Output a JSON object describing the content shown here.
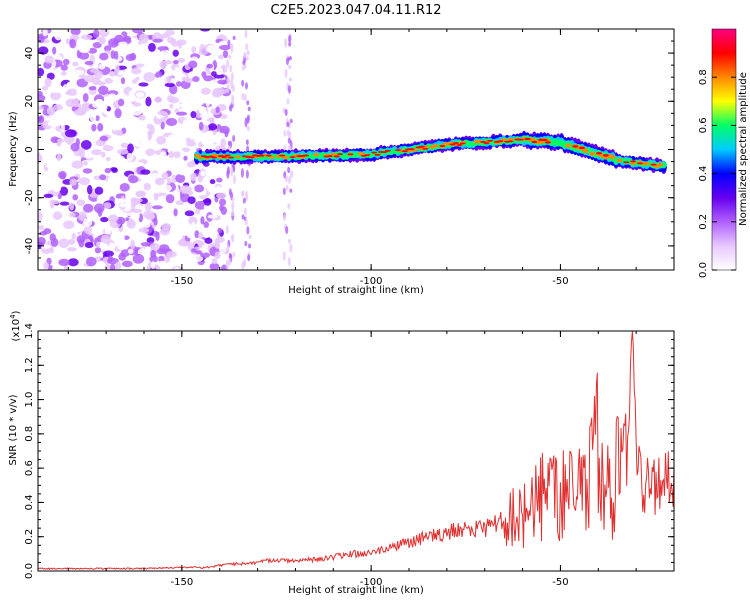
{
  "title": "C2E5.2023.047.04.11.R12",
  "chart_data": [
    {
      "type": "heatmap",
      "xlabel": "Height of straight line (km)",
      "ylabel": "Frequency (Hz)",
      "xlim": [
        -188,
        -20
      ],
      "ylim": [
        -50,
        50
      ],
      "xticks": [
        -150,
        -100,
        -50
      ],
      "yticks": [
        -40,
        -20,
        0,
        20,
        40
      ],
      "colorbar": {
        "label": "Normalized spectral amplitude",
        "range": [
          0,
          1
        ],
        "ticks": [
          "0.0",
          "0.2",
          "0.4",
          "0.6",
          "0.8"
        ],
        "colors": [
          "#ffffff",
          "#e8c8ff",
          "#b060ff",
          "#6600ee",
          "#0000ff",
          "#00ccff",
          "#00ff66",
          "#ffff00",
          "#ff8800",
          "#ff0000",
          "#ff0080"
        ]
      },
      "noise_region_x": [
        -188,
        -142
      ],
      "signal_ridge": {
        "x": [
          -146,
          -130,
          -110,
          -100,
          -90,
          -80,
          -70,
          -60,
          -50,
          -40,
          -33,
          -22
        ],
        "y": [
          -3,
          -3,
          -2.5,
          -2,
          0,
          2,
          3,
          4,
          3,
          -2,
          -5,
          -7
        ]
      }
    },
    {
      "type": "line",
      "xlabel": "Height of straight line (km)",
      "ylabel": "SNR (10 * v/v)",
      "yscale_label": "(x10",
      "yscale_exp": "4",
      "yscale_close": ")",
      "xlim": [
        -188,
        -20
      ],
      "ylim": [
        0,
        1.4
      ],
      "xticks": [
        -150,
        -100,
        -50
      ],
      "yticks": [
        "0.0",
        "0.2",
        "0.4",
        "0.6",
        "0.8",
        "1.0",
        "1.2",
        "1.4"
      ],
      "series": [
        {
          "color": "#e03030",
          "points": [
            [
              -188,
              0.01
            ],
            [
              -160,
              0.01
            ],
            [
              -145,
              0.02
            ],
            [
              -140,
              0.04
            ],
            [
              -135,
              0.05
            ],
            [
              -130,
              0.06
            ],
            [
              -126,
              0.08
            ],
            [
              -120,
              0.07
            ],
            [
              -112,
              0.09
            ],
            [
              -105,
              0.12
            ],
            [
              -100,
              0.13
            ],
            [
              -95,
              0.16
            ],
            [
              -90,
              0.2
            ],
            [
              -85,
              0.24
            ],
            [
              -80,
              0.27
            ],
            [
              -75,
              0.3
            ],
            [
              -70,
              0.3
            ],
            [
              -65,
              0.36
            ],
            [
              -62,
              0.55
            ],
            [
              -58,
              0.6
            ],
            [
              -55,
              0.7
            ],
            [
              -50,
              0.72
            ],
            [
              -45,
              0.75
            ],
            [
              -42,
              0.85
            ],
            [
              -40,
              1.2
            ],
            [
              -37,
              0.7
            ],
            [
              -35,
              0.9
            ],
            [
              -33,
              0.85
            ],
            [
              -31,
              1.4
            ],
            [
              -29,
              0.7
            ],
            [
              -26,
              0.65
            ],
            [
              -23,
              0.68
            ],
            [
              -20,
              0.72
            ]
          ]
        }
      ]
    }
  ]
}
